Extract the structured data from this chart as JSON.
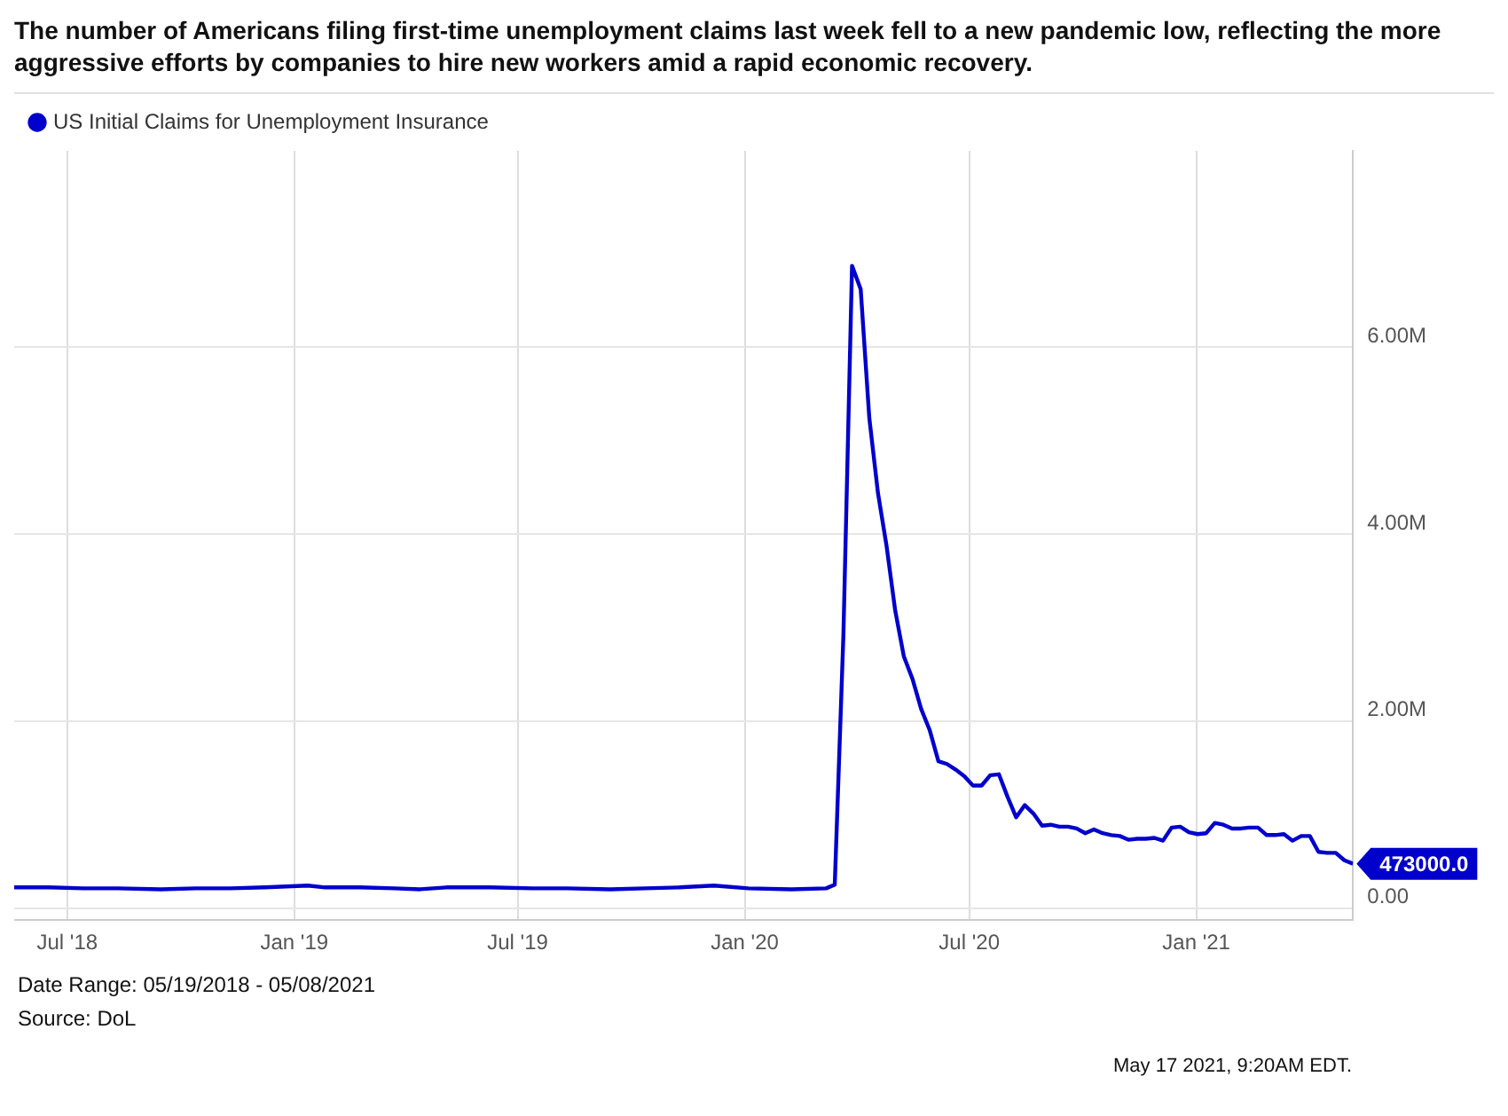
{
  "chart_data": {
    "type": "line",
    "title": "The number of Americans filing first-time unemployment claims last week fell to a new pandemic low, reflecting the more aggressive efforts by companies to hire new workers amid a rapid economic recovery.",
    "annotations": [
      "Date Range: 05/19/2018 - 05/08/2021",
      "Source: DoL",
      "May 17 2021, 9:20AM EDT."
    ],
    "x": [
      "2018-05-19",
      "2018-06-16",
      "2018-07-14",
      "2018-08-11",
      "2018-09-15",
      "2018-10-13",
      "2018-11-10",
      "2018-12-08",
      "2019-01-12",
      "2019-01-26",
      "2019-02-23",
      "2019-03-23",
      "2019-04-13",
      "2019-05-04",
      "2019-06-08",
      "2019-07-13",
      "2019-08-10",
      "2019-09-14",
      "2019-10-12",
      "2019-11-09",
      "2019-12-07",
      "2020-01-04",
      "2020-02-08",
      "2020-03-07",
      "2020-03-14",
      "2020-03-21",
      "2020-03-28",
      "2020-04-04",
      "2020-04-11",
      "2020-04-18",
      "2020-04-25",
      "2020-05-02",
      "2020-05-09",
      "2020-05-16",
      "2020-05-23",
      "2020-05-30",
      "2020-06-06",
      "2020-06-13",
      "2020-06-20",
      "2020-06-27",
      "2020-07-04",
      "2020-07-11",
      "2020-07-18",
      "2020-07-25",
      "2020-08-01",
      "2020-08-08",
      "2020-08-15",
      "2020-08-22",
      "2020-08-29",
      "2020-09-05",
      "2020-09-12",
      "2020-09-19",
      "2020-09-26",
      "2020-10-03",
      "2020-10-10",
      "2020-10-17",
      "2020-10-24",
      "2020-10-31",
      "2020-11-07",
      "2020-11-14",
      "2020-11-21",
      "2020-11-28",
      "2020-12-05",
      "2020-12-12",
      "2020-12-19",
      "2020-12-26",
      "2021-01-02",
      "2021-01-09",
      "2021-01-16",
      "2021-01-23",
      "2021-01-30",
      "2021-02-06",
      "2021-02-13",
      "2021-02-20",
      "2021-02-27",
      "2021-03-06",
      "2021-03-13",
      "2021-03-20",
      "2021-03-27",
      "2021-04-03",
      "2021-04-10",
      "2021-04-17",
      "2021-04-24",
      "2021-05-01",
      "2021-05-08"
    ],
    "series": [
      {
        "name": "US Initial Claims for Unemployment Insurance",
        "color": "#0000cc",
        "values": [
          220000,
          220000,
          210000,
          210000,
          200000,
          210000,
          210000,
          220000,
          240000,
          220000,
          220000,
          210000,
          200000,
          220000,
          220000,
          210000,
          210000,
          200000,
          210000,
          220000,
          240000,
          210000,
          200000,
          210000,
          250000,
          2920000,
          6870000,
          6620000,
          5240000,
          4440000,
          3870000,
          3180000,
          2690000,
          2450000,
          2130000,
          1900000,
          1570000,
          1540000,
          1480000,
          1410000,
          1310000,
          1310000,
          1420000,
          1430000,
          1190000,
          970000,
          1100000,
          1010000,
          880000,
          890000,
          870000,
          870000,
          850000,
          800000,
          840000,
          800000,
          780000,
          770000,
          730000,
          740000,
          740000,
          750000,
          720000,
          860000,
          870000,
          810000,
          790000,
          800000,
          910000,
          890000,
          850000,
          850000,
          860000,
          860000,
          780000,
          780000,
          790000,
          720000,
          770000,
          770000,
          600000,
          590000,
          590000,
          510000,
          473000
        ],
        "value_labels": [
          null,
          null,
          null,
          null,
          null,
          null,
          null,
          null,
          null,
          null,
          null,
          null,
          null,
          null,
          null,
          null,
          null,
          null,
          null,
          null,
          null,
          null,
          null,
          null,
          null,
          null,
          null,
          null,
          null,
          null,
          null,
          null,
          null,
          null,
          null,
          null,
          null,
          null,
          null,
          null,
          null,
          null,
          null,
          null,
          null,
          null,
          null,
          null,
          null,
          null,
          null,
          null,
          null,
          null,
          null,
          null,
          null,
          null,
          null,
          null,
          null,
          null,
          null,
          null,
          null,
          null,
          null,
          null,
          null,
          null,
          null,
          null,
          null,
          null,
          null,
          null,
          null,
          null,
          null,
          null,
          null,
          null,
          null,
          null,
          "473000.0"
        ]
      }
    ],
    "xlim": [
      "2018-05-19",
      "2021-05-08"
    ],
    "xticks": [
      {
        "value": "2018-07-01",
        "label": "Jul '18"
      },
      {
        "value": "2019-01-01",
        "label": "Jan '19"
      },
      {
        "value": "2019-07-01",
        "label": "Jul '19"
      },
      {
        "value": "2020-01-01",
        "label": "Jan '20"
      },
      {
        "value": "2020-07-01",
        "label": "Jul '20"
      },
      {
        "value": "2021-01-01",
        "label": "Jan '21"
      }
    ],
    "ylim": [
      -130000,
      8100000
    ],
    "yticks": [
      {
        "value": 0,
        "label": "0.00"
      },
      {
        "value": 2000000,
        "label": "2.00M"
      },
      {
        "value": 4000000,
        "label": "4.00M"
      },
      {
        "value": 6000000,
        "label": "6.00M"
      }
    ],
    "grid": true,
    "legend": "top left",
    "marker": "none",
    "line_style": "solid"
  }
}
